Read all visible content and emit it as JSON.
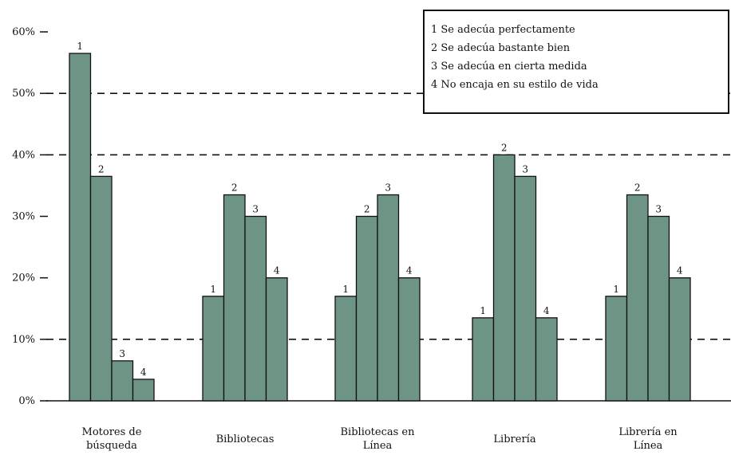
{
  "chart_data": {
    "type": "bar",
    "categories": [
      "Motores de búsqueda",
      "Bibliotecas",
      "Bibliotecas en Línea",
      "Librería",
      "Librería en Línea"
    ],
    "series": [
      {
        "name": "1 Se adecúa perfectamente",
        "label": "1",
        "values": [
          56.5,
          17,
          17,
          13.5,
          17
        ]
      },
      {
        "name": "2 Se adecúa bastante bien",
        "label": "2",
        "values": [
          36.5,
          33.5,
          30,
          40,
          33.5
        ]
      },
      {
        "name": "3 Se adecúa en cierta medida",
        "label": "3",
        "values": [
          6.5,
          30,
          33.5,
          36.5,
          30
        ]
      },
      {
        "name": "4 No encaja en su estilo de vida",
        "label": "4",
        "values": [
          3.5,
          20,
          20,
          13.5,
          20
        ]
      }
    ],
    "ylim": [
      0,
      60
    ],
    "yticks": [
      0,
      10,
      20,
      30,
      40,
      50,
      60
    ],
    "ytick_labels": [
      "0%",
      "10%",
      "20%",
      "30%",
      "40%",
      "50%",
      "60%"
    ],
    "gridlines": [
      10,
      40,
      50
    ],
    "legend_position": "top-right",
    "bar_color": "#6e9485"
  }
}
